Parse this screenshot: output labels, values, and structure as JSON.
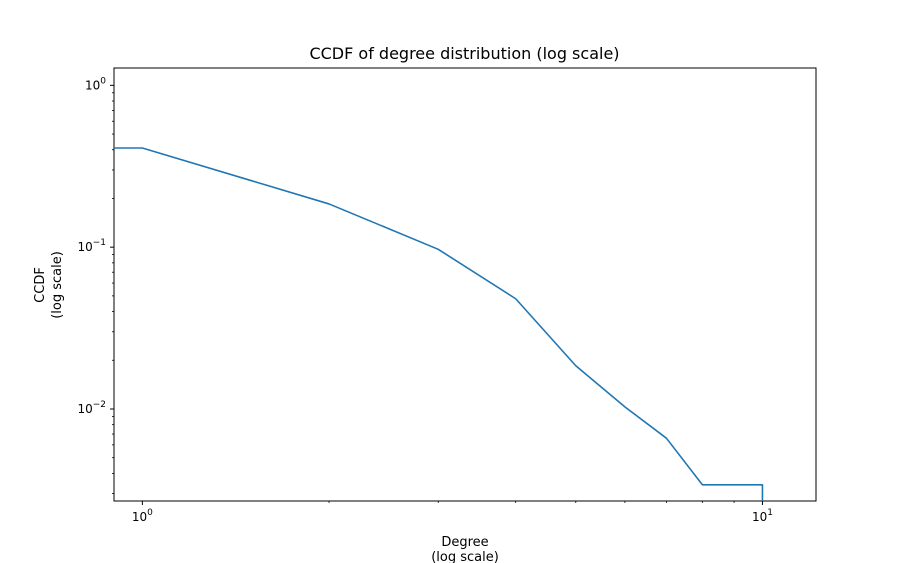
{
  "chart_data": {
    "type": "line",
    "title": "CCDF of degree distribution (log scale)",
    "xlabel": [
      "Degree",
      "(log scale)"
    ],
    "ylabel": [
      "CCDF",
      "(log scale)"
    ],
    "xscale": "log",
    "yscale": "log",
    "xlim": [
      0.9,
      12.2
    ],
    "ylim": [
      0.0027,
      1.28
    ],
    "grid": false,
    "legend": "none",
    "x_ticks": [
      {
        "base": "10",
        "exp": "0",
        "value": 1
      },
      {
        "base": "10",
        "exp": "1",
        "value": 10
      }
    ],
    "y_ticks": [
      {
        "base": "10",
        "exp": "0",
        "value": 1
      },
      {
        "base": "10",
        "exp": "−1",
        "value": 0.1
      },
      {
        "base": "10",
        "exp": "−2",
        "value": 0.01
      }
    ],
    "series": [
      {
        "color": "#1f77b4",
        "x": [
          0.9,
          1,
          2,
          3,
          4,
          5,
          6,
          7,
          8,
          9,
          10,
          10
        ],
        "y": [
          0.41,
          0.41,
          0.185,
          0.097,
          0.048,
          0.0185,
          0.0103,
          0.0066,
          0.0034,
          0.0034,
          0.0034,
          0.0027
        ]
      }
    ]
  }
}
